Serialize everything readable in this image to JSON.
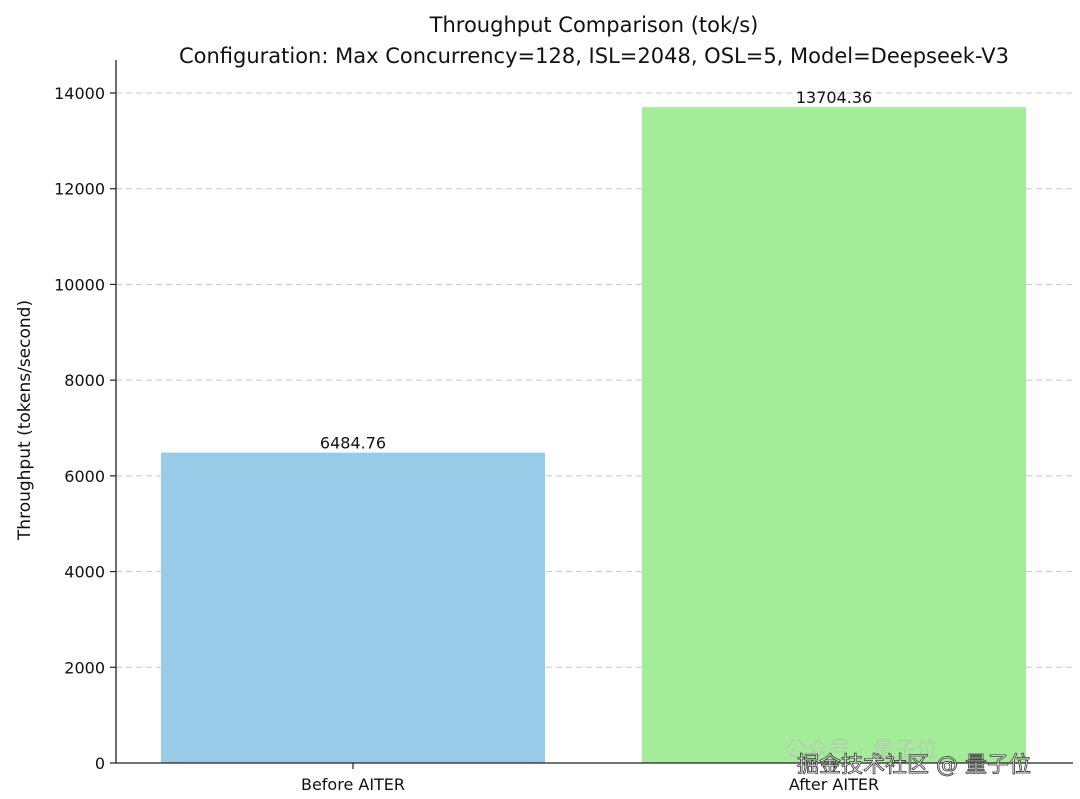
{
  "chart_data": {
    "type": "bar",
    "title": "Throughput Comparison (tok/s)",
    "subtitle": "Configuration: Max Concurrency=128, ISL=2048, OSL=5, Model=Deepseek-V3",
    "xlabel": "",
    "ylabel": "Throughput (tokens/second)",
    "categories": [
      "Before AITER",
      "After AITER"
    ],
    "values": [
      6484.76,
      13704.36
    ],
    "data_labels": [
      "6484.76",
      "13704.36"
    ],
    "colors": [
      "#97cbe7",
      "#a4ed98"
    ],
    "ylim": [
      0,
      14000
    ],
    "yticks": [
      0,
      2000,
      4000,
      6000,
      8000,
      10000,
      12000,
      14000
    ],
    "grid": "horizontal-dashed",
    "legend": "none"
  },
  "watermark": {
    "faint_text": "公众号 · 量子位",
    "text": "掘金技术社区 @ 量子位"
  }
}
